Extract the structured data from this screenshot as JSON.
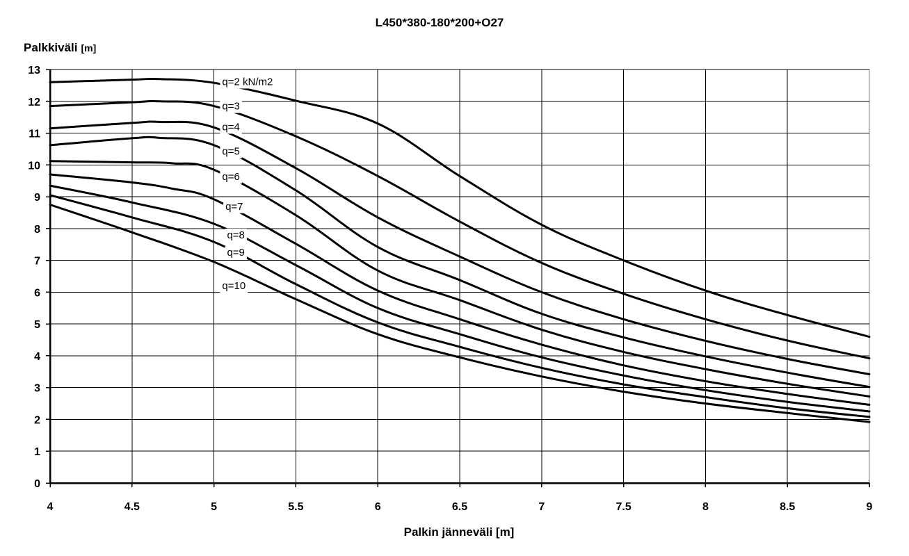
{
  "chart_data": {
    "type": "line",
    "title": "L450*380-180*200+O27",
    "ylabel": "Palkkiväli",
    "ylabel_unit": "[m]",
    "xlabel": "Palkin jänneväli [m]",
    "xlim": [
      4,
      9
    ],
    "ylim": [
      0,
      13
    ],
    "x_ticks": [
      "4",
      "4.5",
      "5",
      "5.5",
      "6",
      "6.5",
      "7",
      "7.5",
      "8",
      "8.5",
      "9"
    ],
    "y_ticks": [
      "0",
      "1",
      "2",
      "3",
      "4",
      "5",
      "6",
      "7",
      "8",
      "9",
      "10",
      "11",
      "12",
      "13"
    ],
    "grid": true,
    "legend": "inline labels",
    "series": [
      {
        "name": "q=2 kN/m2",
        "x": [
          4,
          4.5,
          4.67,
          5,
          5.5,
          6,
          6.5,
          7,
          7.5,
          8,
          8.5,
          9
        ],
        "y": [
          12.6,
          12.68,
          12.7,
          12.58,
          12.02,
          11.3,
          9.65,
          8.12,
          7.0,
          6.05,
          5.28,
          4.6
        ]
      },
      {
        "name": "q=3",
        "x": [
          4,
          4.5,
          4.67,
          5,
          5.5,
          6,
          6.5,
          7,
          7.5,
          8,
          8.5,
          9
        ],
        "y": [
          11.85,
          11.97,
          12.0,
          11.85,
          10.9,
          9.65,
          8.22,
          6.92,
          5.95,
          5.15,
          4.48,
          3.92
        ]
      },
      {
        "name": "q=4",
        "x": [
          4,
          4.5,
          4.67,
          5,
          5.5,
          6,
          6.5,
          7,
          7.5,
          8,
          8.5,
          9
        ],
        "y": [
          11.15,
          11.32,
          11.35,
          11.18,
          9.9,
          8.35,
          7.12,
          6.0,
          5.15,
          4.47,
          3.9,
          3.42
        ]
      },
      {
        "name": "q=5",
        "x": [
          4,
          4.5,
          4.67,
          5,
          5.5,
          6,
          6.5,
          7,
          7.5,
          8,
          8.5,
          9
        ],
        "y": [
          10.62,
          10.84,
          10.85,
          10.62,
          9.2,
          7.42,
          6.38,
          5.32,
          4.58,
          3.98,
          3.47,
          3.02
        ]
      },
      {
        "name": "q=6",
        "x": [
          4,
          4.5,
          4.75,
          5,
          5.5,
          6,
          6.5,
          7,
          7.5,
          8,
          8.5,
          9
        ],
        "y": [
          10.12,
          10.08,
          10.05,
          9.85,
          8.42,
          6.68,
          5.75,
          4.82,
          4.12,
          3.58,
          3.12,
          2.72
        ]
      },
      {
        "name": "q=7",
        "x": [
          4,
          4.5,
          4.75,
          5,
          5.5,
          6,
          6.5,
          7,
          7.5,
          8,
          8.5,
          9
        ],
        "y": [
          9.7,
          9.45,
          9.25,
          8.92,
          7.52,
          6.05,
          5.15,
          4.35,
          3.7,
          3.2,
          2.8,
          2.46
        ]
      },
      {
        "name": "q=8",
        "x": [
          4,
          4.5,
          5,
          5.5,
          6,
          6.5,
          7,
          7.5,
          8,
          8.5,
          9
        ],
        "y": [
          9.35,
          8.82,
          8.15,
          6.85,
          5.5,
          4.68,
          3.95,
          3.38,
          2.92,
          2.55,
          2.25
        ]
      },
      {
        "name": "q=9",
        "x": [
          4,
          4.5,
          5,
          5.5,
          6,
          6.5,
          7,
          7.5,
          8,
          8.5,
          9
        ],
        "y": [
          9.05,
          8.35,
          7.58,
          6.25,
          5.05,
          4.28,
          3.62,
          3.1,
          2.7,
          2.35,
          2.08
        ]
      },
      {
        "name": "q=10",
        "x": [
          4,
          4.5,
          5,
          5.5,
          6,
          6.5,
          7,
          7.5,
          8,
          8.5,
          9
        ],
        "y": [
          8.75,
          7.88,
          6.95,
          5.78,
          4.68,
          3.95,
          3.35,
          2.87,
          2.5,
          2.2,
          1.92
        ]
      }
    ],
    "annotations": [
      {
        "text": "q=2 kN/m2",
        "x": 5.05,
        "y": 12.62
      },
      {
        "text": "q=3",
        "x": 5.05,
        "y": 11.85
      },
      {
        "text": "q=4",
        "x": 5.05,
        "y": 11.2
      },
      {
        "text": "q=5",
        "x": 5.05,
        "y": 10.43
      },
      {
        "text": "q=6",
        "x": 5.05,
        "y": 9.63
      },
      {
        "text": "q=7",
        "x": 5.07,
        "y": 8.7
      },
      {
        "text": "q=8",
        "x": 5.08,
        "y": 7.8
      },
      {
        "text": "q=9",
        "x": 5.08,
        "y": 7.25
      },
      {
        "text": "q=10",
        "x": 5.05,
        "y": 6.2
      }
    ]
  }
}
